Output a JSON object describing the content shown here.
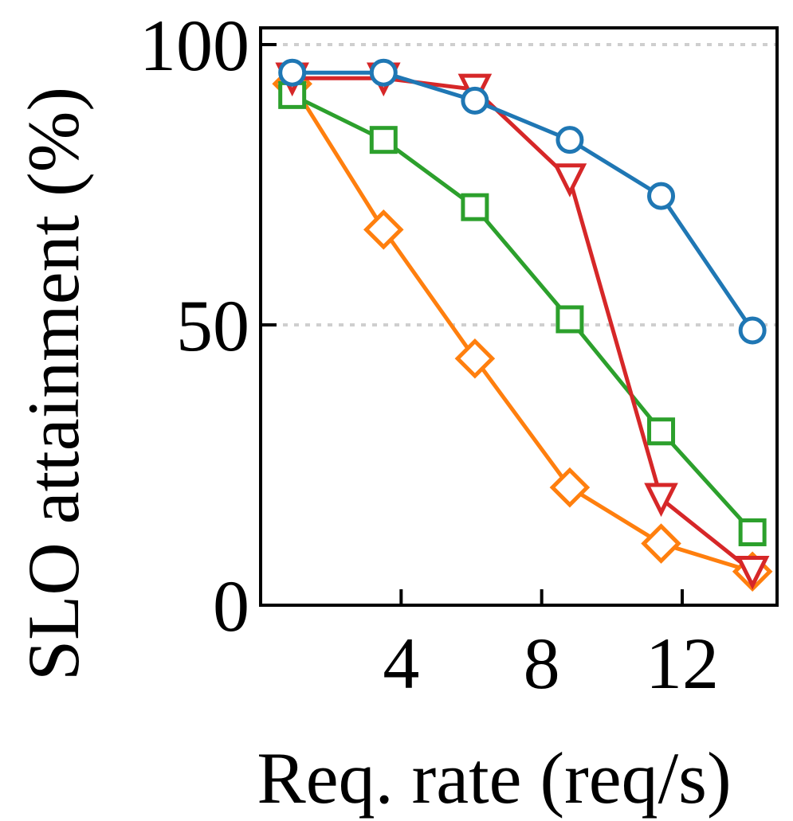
{
  "chart_data": {
    "type": "line",
    "title": "",
    "xlabel": "Req. rate (req/s)",
    "ylabel": "SLO attainment (%)",
    "xlim": [
      0,
      14.7
    ],
    "ylim": [
      0,
      100
    ],
    "xticks": [
      4,
      8,
      12
    ],
    "yticks": [
      0,
      50,
      100
    ],
    "grid": "horizontal dotted at 50 and 100",
    "x": [
      0.9,
      3.5,
      6.1,
      8.8,
      11.4,
      14.0
    ],
    "series": [
      {
        "name": "orange-diamond",
        "color": "#ff7f0e",
        "marker": "diamond",
        "values": [
          93,
          67,
          44,
          21,
          11,
          6
        ]
      },
      {
        "name": "green-square",
        "color": "#2ca02c",
        "marker": "square",
        "values": [
          91,
          83,
          71,
          51,
          31,
          13
        ]
      },
      {
        "name": "red-triangle",
        "color": "#d62728",
        "marker": "triangle-down",
        "values": [
          94,
          94,
          92,
          76,
          19,
          6
        ]
      },
      {
        "name": "blue-circle",
        "color": "#1f77b4",
        "marker": "circle",
        "values": [
          95,
          95,
          90,
          83,
          73,
          49
        ]
      }
    ]
  }
}
